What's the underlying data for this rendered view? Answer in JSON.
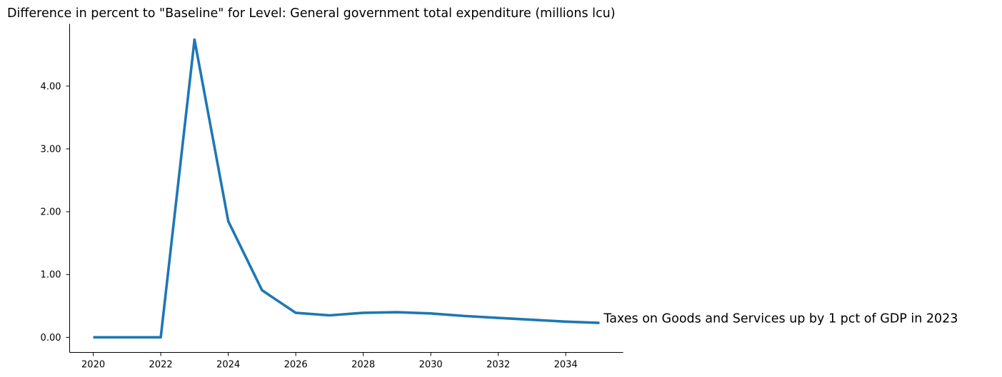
{
  "chart_data": {
    "type": "line",
    "title": "Difference in percent to \"Baseline\" for Level: General government total expenditure (millions lcu)",
    "xlabel": "",
    "ylabel": "",
    "x": [
      2020,
      2021,
      2022,
      2023,
      2024,
      2025,
      2026,
      2027,
      2028,
      2029,
      2030,
      2031,
      2032,
      2033,
      2034,
      2035
    ],
    "xlim": [
      2019.3,
      2035.7
    ],
    "ylim": [
      -0.24,
      4.99
    ],
    "x_ticks": [
      "2020",
      "2022",
      "2024",
      "2026",
      "2028",
      "2030",
      "2032",
      "2034"
    ],
    "x_tick_values": [
      2020,
      2022,
      2024,
      2026,
      2028,
      2030,
      2032,
      2034
    ],
    "y_ticks": [
      "0.00",
      "1.00",
      "2.00",
      "3.00",
      "4.00"
    ],
    "y_tick_values": [
      0,
      1,
      2,
      3,
      4
    ],
    "grid": false,
    "legend": "none",
    "series": [
      {
        "name": "Taxes on Goods and Services up by 1 pct of GDP in 2023",
        "color": "#1f77b4",
        "values": [
          0.0,
          0.0,
          0.0,
          4.74,
          1.85,
          0.75,
          0.39,
          0.35,
          0.39,
          0.4,
          0.38,
          0.34,
          0.31,
          0.28,
          0.25,
          0.23
        ]
      }
    ]
  }
}
